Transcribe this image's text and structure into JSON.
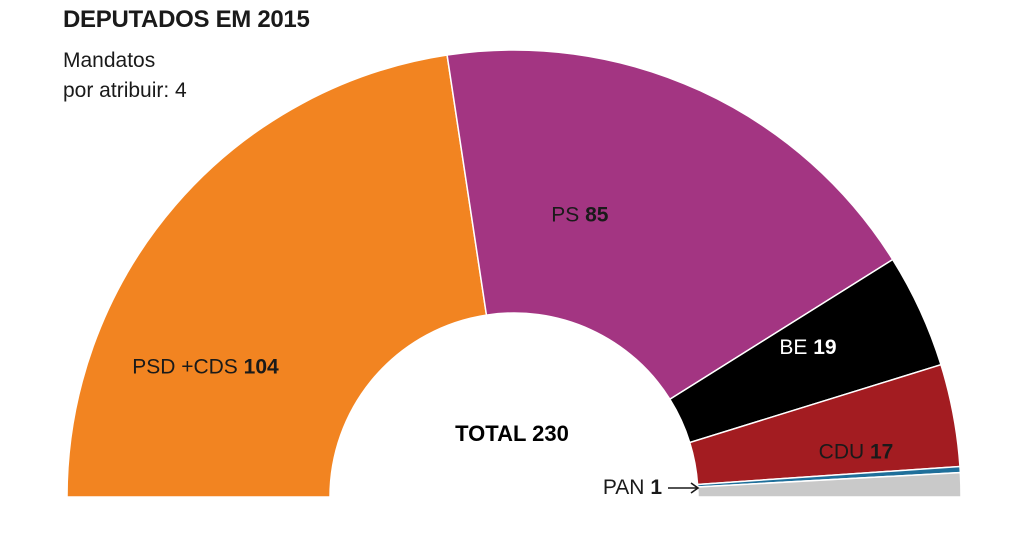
{
  "chart_data": {
    "type": "pie",
    "title": "DEPUTADOS EM 2015",
    "note_lines": [
      "Mandatos",
      "por atribuir: 4"
    ],
    "total_label": "TOTAL 230",
    "total": 230,
    "segments": [
      {
        "name": "PSD +CDS",
        "value": 104,
        "color": "#f28421",
        "label_color": "#1a1a1a"
      },
      {
        "name": "PS",
        "value": 85,
        "color": "#a33582",
        "label_color": "#1a1a1a"
      },
      {
        "name": "BE",
        "value": 19,
        "color": "#000000",
        "label_color": "#ffffff"
      },
      {
        "name": "CDU",
        "value": 17,
        "color": "#a31c21",
        "label_color": "#1a1a1a"
      },
      {
        "name": "PAN",
        "value": 1,
        "color": "#1f6f9a",
        "label_color": "#1a1a1a"
      },
      {
        "name": "",
        "value": 4,
        "color": "#c9c9c9",
        "label_color": "#1a1a1a"
      }
    ]
  }
}
